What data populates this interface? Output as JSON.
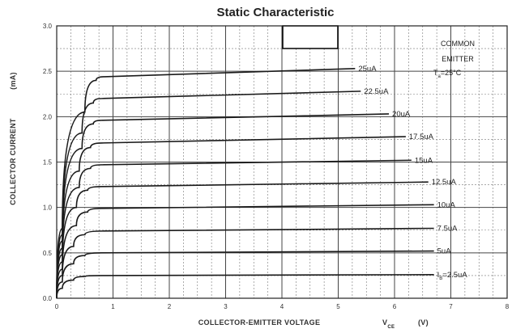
{
  "chart_data": {
    "type": "line",
    "title": "Static Characteristic",
    "xlabel": "COLLECTOR-EMITTER VOLTAGE",
    "xlabel_symbol": "V",
    "xlabel_subscript": "CE",
    "xlabel_unit": "(V)",
    "ylabel": "COLLECTOR CURRENT",
    "ylabel_unit": "(mA)",
    "xlim": [
      0,
      8
    ],
    "ylim": [
      0,
      3.0
    ],
    "xticks": [
      "0",
      "1",
      "2",
      "3",
      "4",
      "5",
      "6",
      "7",
      "8"
    ],
    "yticks": [
      "0.0",
      "0.5",
      "1.0",
      "1.5",
      "2.0",
      "2.5",
      "3.0"
    ],
    "grid": true,
    "annotation": {
      "line1": "COMMON",
      "line2": "EMITTER",
      "line3_prefix": "T",
      "line3_sub": "a",
      "line3_suffix": "=25°C"
    },
    "series": [
      {
        "name": "I",
        "label_sub": "B",
        "label_suffix": "=2.5uA",
        "values": [
          [
            0,
            0
          ],
          [
            0.1,
            0.11
          ],
          [
            0.3,
            0.2
          ],
          [
            0.5,
            0.24
          ],
          [
            0.8,
            0.25
          ],
          [
            6.7,
            0.26
          ]
        ]
      },
      {
        "name": "5uA",
        "values": [
          [
            0,
            0
          ],
          [
            0.1,
            0.18
          ],
          [
            0.3,
            0.38
          ],
          [
            0.5,
            0.47
          ],
          [
            0.8,
            0.5
          ],
          [
            6.7,
            0.52
          ]
        ]
      },
      {
        "name": "7.5uA",
        "values": [
          [
            0,
            0
          ],
          [
            0.1,
            0.25
          ],
          [
            0.3,
            0.57
          ],
          [
            0.5,
            0.7
          ],
          [
            0.8,
            0.74
          ],
          [
            6.7,
            0.77
          ]
        ]
      },
      {
        "name": "10uA",
        "values": [
          [
            0,
            0
          ],
          [
            0.1,
            0.32
          ],
          [
            0.35,
            0.8
          ],
          [
            0.55,
            0.95
          ],
          [
            0.8,
            0.99
          ],
          [
            6.7,
            1.03
          ]
        ]
      },
      {
        "name": "12.5uA",
        "values": [
          [
            0,
            0
          ],
          [
            0.1,
            0.4
          ],
          [
            0.35,
            1.0
          ],
          [
            0.55,
            1.19
          ],
          [
            0.8,
            1.23
          ],
          [
            6.6,
            1.28
          ]
        ]
      },
      {
        "name": "15uA",
        "values": [
          [
            0,
            0
          ],
          [
            0.1,
            0.48
          ],
          [
            0.4,
            1.22
          ],
          [
            0.6,
            1.43
          ],
          [
            0.8,
            1.47
          ],
          [
            6.3,
            1.52
          ]
        ]
      },
      {
        "name": "17.5uA",
        "values": [
          [
            0,
            0
          ],
          [
            0.1,
            0.55
          ],
          [
            0.4,
            1.4
          ],
          [
            0.6,
            1.66
          ],
          [
            0.8,
            1.71
          ],
          [
            6.2,
            1.78
          ]
        ]
      },
      {
        "name": "20uA",
        "values": [
          [
            0,
            0
          ],
          [
            0.1,
            0.63
          ],
          [
            0.45,
            1.65
          ],
          [
            0.65,
            1.92
          ],
          [
            0.8,
            1.96
          ],
          [
            5.9,
            2.03
          ]
        ]
      },
      {
        "name": "22.5uA",
        "values": [
          [
            0,
            0
          ],
          [
            0.1,
            0.7
          ],
          [
            0.45,
            1.82
          ],
          [
            0.65,
            2.15
          ],
          [
            0.8,
            2.2
          ],
          [
            5.4,
            2.28
          ]
        ]
      },
      {
        "name": "25uA",
        "values": [
          [
            0,
            0
          ],
          [
            0.1,
            0.77
          ],
          [
            0.5,
            2.05
          ],
          [
            0.7,
            2.4
          ],
          [
            0.85,
            2.44
          ],
          [
            5.3,
            2.53
          ]
        ]
      }
    ]
  }
}
